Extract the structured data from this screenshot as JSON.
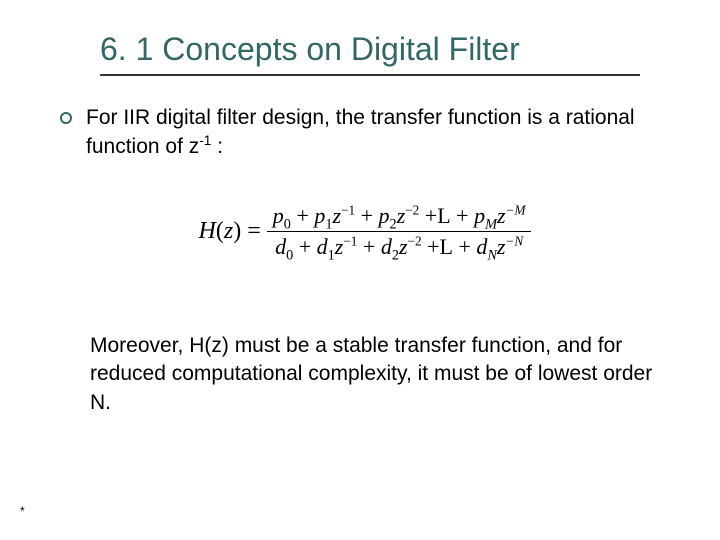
{
  "title": "6. 1 Concepts on Digital Filter",
  "colors": {
    "heading": "#336666",
    "underline": "#333333",
    "text": "#000000",
    "background": "#ffffff",
    "bullet_ring": "#336666"
  },
  "typography": {
    "title_font": "Arial",
    "title_fontsize_pt": 24,
    "body_font": "Verdana",
    "body_fontsize_pt": 16,
    "equation_font": "Times New Roman",
    "equation_fontsize_pt": 18,
    "closing_font": "Arial",
    "closing_fontsize_pt": 16
  },
  "bullet": {
    "pre": "For IIR digital filter design, the transfer function is a rational function of z",
    "exp": "-1",
    "post": " :"
  },
  "equation": {
    "lhs_var": "H",
    "lhs_arg": "z",
    "numerator": {
      "p0": "p",
      "p0_sub": "0",
      "p1": "p",
      "p1_sub": "1",
      "p1_exp": "−1",
      "p2": "p",
      "p2_sub": "2",
      "p2_exp": "−2",
      "ellipsis": "L",
      "pM": "p",
      "pM_sub": "M",
      "pM_exp": "−M"
    },
    "denominator": {
      "d0": "d",
      "d0_sub": "0",
      "d1": "d",
      "d1_sub": "1",
      "d1_exp": "−1",
      "d2": "d",
      "d2_sub": "2",
      "d2_exp": "−2",
      "ellipsis": "L",
      "dN": "d",
      "dN_sub": "N",
      "dN_exp": "−N"
    }
  },
  "closing": "Moreover, H(z) must be a stable transfer function, and for reduced computational complexity, it must be of lowest order N.",
  "footnote": "*"
}
